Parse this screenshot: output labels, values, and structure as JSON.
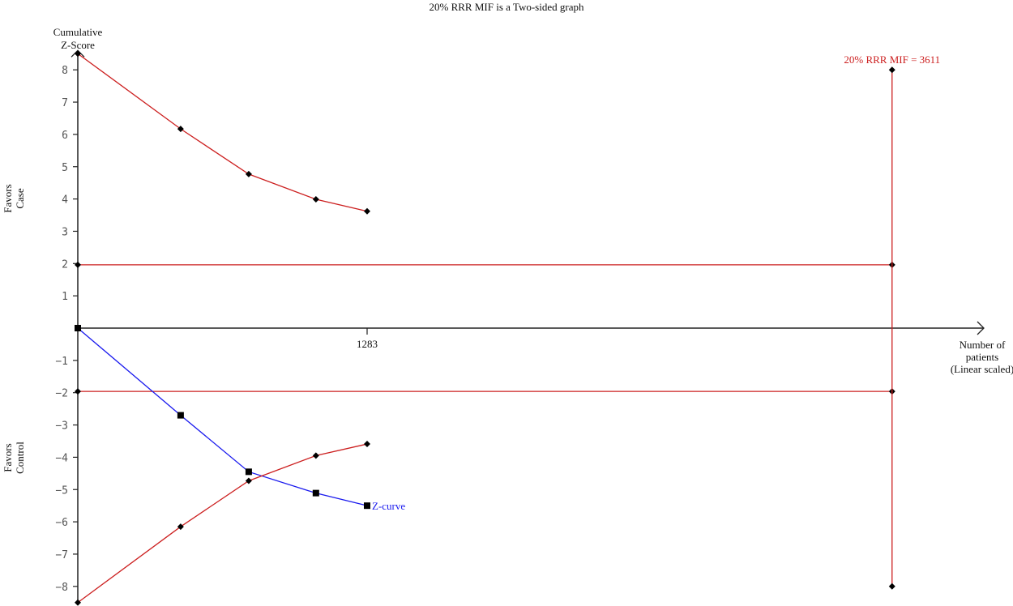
{
  "chart_data": {
    "type": "line",
    "title": "20% RRR MIF is a Two-sided graph",
    "ylabel": "Cumulative Z-Score",
    "xlabel": "Number of patients (Linear scaled)",
    "ylim": [
      -8.5,
      8.5
    ],
    "xlim": [
      0,
      4300
    ],
    "yticks": [
      -8,
      -7,
      -6,
      -5,
      -4,
      -3,
      -2,
      -1,
      1,
      2,
      3,
      4,
      5,
      6,
      7,
      8
    ],
    "xticks": [
      1283
    ],
    "side_labels": {
      "upper": "Favors Case",
      "lower": "Favors Control"
    },
    "colors": {
      "boundary": "#cc1f1f",
      "zcurve": "#1a1aee",
      "axis": "#222222"
    },
    "series": [
      {
        "name": "Z-curve",
        "marker": "square",
        "x": [
          0,
          456,
          758,
          1056,
          1283
        ],
        "y": [
          0,
          -2.7,
          -4.45,
          -5.11,
          -5.5
        ]
      },
      {
        "marker": "diamond",
        "x": [
          0,
          456,
          758,
          1056,
          1283
        ],
        "y": [
          8.5,
          6.17,
          4.77,
          3.99,
          3.62
        ]
      },
      {
        "marker": "diamond",
        "x": [
          0,
          456,
          758,
          1056,
          1283
        ],
        "y": [
          -8.5,
          -6.15,
          -4.73,
          -3.95,
          -3.59
        ]
      }
    ],
    "conventional_boundaries": [
      1.96,
      -1.96
    ],
    "mif": {
      "label": "20% RRR MIF = 3611",
      "x": 3611,
      "ymin": -8,
      "ymax": 8
    }
  }
}
